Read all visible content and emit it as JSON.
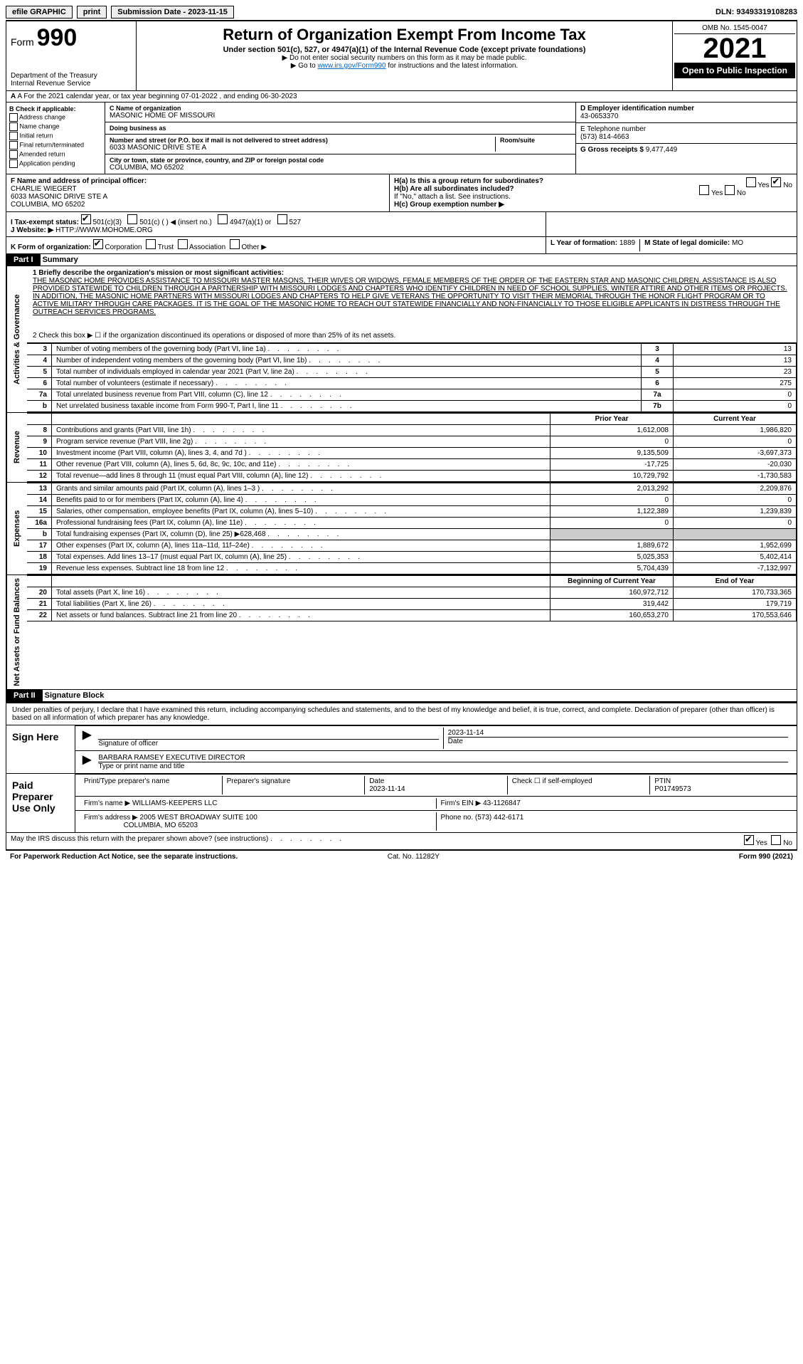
{
  "topbar": {
    "efile": "efile GRAPHIC",
    "print": "print",
    "sub_label": "Submission Date - 2023-11-15",
    "dln": "DLN: 93493319108283"
  },
  "header": {
    "form_label": "Form",
    "form_num": "990",
    "title": "Return of Organization Exempt From Income Tax",
    "subtitle": "Under section 501(c), 527, or 4947(a)(1) of the Internal Revenue Code (except private foundations)",
    "note1": "▶ Do not enter social security numbers on this form as it may be made public.",
    "note2_pre": "▶ Go to ",
    "note2_link": "www.irs.gov/Form990",
    "note2_post": " for instructions and the latest information.",
    "dept": "Department of the Treasury",
    "irs": "Internal Revenue Service",
    "omb": "OMB No. 1545-0047",
    "year": "2021",
    "open": "Open to Public Inspection"
  },
  "row_a": "A For the 2021 calendar year, or tax year beginning 07-01-2022   , and ending 06-30-2023",
  "col_b": {
    "header": "B Check if applicable:",
    "items": [
      "Address change",
      "Name change",
      "Initial return",
      "Final return/terminated",
      "Amended return",
      "Application pending"
    ]
  },
  "col_c": {
    "name_lbl": "C Name of organization",
    "name": "MASONIC HOME OF MISSOURI",
    "dba_lbl": "Doing business as",
    "dba": "",
    "street_lbl": "Number and street (or P.O. box if mail is not delivered to street address)",
    "room_lbl": "Room/suite",
    "street": "6033 MASONIC DRIVE STE A",
    "city_lbl": "City or town, state or province, country, and ZIP or foreign postal code",
    "city": "COLUMBIA, MO  65202"
  },
  "col_d": {
    "ein_lbl": "D Employer identification number",
    "ein": "43-0653370",
    "phone_lbl": "E Telephone number",
    "phone": "(573) 814-4663",
    "gross_lbl": "G Gross receipts $",
    "gross": "9,477,449"
  },
  "fh": {
    "f_lbl": "F  Name and address of principal officer:",
    "f_name": "CHARLIE WIEGERT",
    "f_addr1": "6033 MASONIC DRIVE STE A",
    "f_addr2": "COLUMBIA, MO  65202",
    "ha": "H(a)  Is this a group return for subordinates?",
    "hb": "H(b)  Are all subordinates included?",
    "hb_note": "If \"No,\" attach a list. See instructions.",
    "hc": "H(c)  Group exemption number ▶",
    "yes": "Yes",
    "no": "No"
  },
  "i": {
    "lbl": "I   Tax-exempt status:",
    "opt1": "501(c)(3)",
    "opt2": "501(c) (   ) ◀ (insert no.)",
    "opt3": "4947(a)(1) or",
    "opt4": "527"
  },
  "j": {
    "lbl": "J   Website: ▶",
    "val": "HTTP://WWW.MOHOME.ORG"
  },
  "k": {
    "lbl": "K Form of organization:",
    "opts": [
      "Corporation",
      "Trust",
      "Association",
      "Other ▶"
    ],
    "l_lbl": "L Year of formation:",
    "l_val": "1889",
    "m_lbl": "M State of legal domicile:",
    "m_val": "MO"
  },
  "part1": {
    "tag": "Part I",
    "title": "Summary",
    "line1_lbl": "1  Briefly describe the organization's mission or most significant activities:",
    "mission": "THE MASONIC HOME PROVIDES ASSISTANCE TO MISSOURI MASTER MASONS, THEIR WIVES OR WIDOWS, FEMALE MEMBERS OF THE ORDER OF THE EASTERN STAR AND MASONIC CHILDREN. ASSISTANCE IS ALSO PROVIDED STATEWIDE TO CHILDREN THROUGH A PARTNERSHIP WITH MISSOURI LODGES AND CHAPTERS WHO IDENTIFY CHILDREN IN NEED OF SCHOOL SUPPLIES, WINTER ATTIRE AND OTHER ITEMS OR PROJECTS. IN ADDITION, THE MASONIC HOME PARTNERS WITH MISSOURI LODGES AND CHAPTERS TO HELP GIVE VETERANS THE OPPORTUNITY TO VISIT THEIR MEMORIAL THROUGH THE HONOR FLIGHT PROGRAM OR TO ACTIVE MILITARY THROUGH CARE PACKAGES. IT IS THE GOAL OF THE MASONIC HOME TO REACH OUT STATEWIDE FINANCIALLY AND NON-FINANCIALLY TO THOSE ELIGIBLE APPLICANTS IN DISTRESS THROUGH THE OUTREACH SERVICES PROGRAMS.",
    "line2": "2   Check this box ▶ ☐ if the organization discontinued its operations or disposed of more than 25% of its net assets."
  },
  "vtabs": {
    "ag": "Activities & Governance",
    "rev": "Revenue",
    "exp": "Expenses",
    "net": "Net Assets or Fund Balances"
  },
  "gov_lines": [
    {
      "n": "3",
      "d": "Number of voting members of the governing body (Part VI, line 1a)",
      "c": "3",
      "v": "13"
    },
    {
      "n": "4",
      "d": "Number of independent voting members of the governing body (Part VI, line 1b)",
      "c": "4",
      "v": "13"
    },
    {
      "n": "5",
      "d": "Total number of individuals employed in calendar year 2021 (Part V, line 2a)",
      "c": "5",
      "v": "23"
    },
    {
      "n": "6",
      "d": "Total number of volunteers (estimate if necessary)",
      "c": "6",
      "v": "275"
    },
    {
      "n": "7a",
      "d": "Total unrelated business revenue from Part VIII, column (C), line 12",
      "c": "7a",
      "v": "0"
    },
    {
      "n": "b",
      "d": "Net unrelated business taxable income from Form 990-T, Part I, line 11",
      "c": "7b",
      "v": "0"
    }
  ],
  "year_hdr": {
    "prior": "Prior Year",
    "current": "Current Year"
  },
  "rev_lines": [
    {
      "n": "8",
      "d": "Contributions and grants (Part VIII, line 1h)",
      "p": "1,612,008",
      "c": "1,986,820"
    },
    {
      "n": "9",
      "d": "Program service revenue (Part VIII, line 2g)",
      "p": "0",
      "c": "0"
    },
    {
      "n": "10",
      "d": "Investment income (Part VIII, column (A), lines 3, 4, and 7d )",
      "p": "9,135,509",
      "c": "-3,697,373"
    },
    {
      "n": "11",
      "d": "Other revenue (Part VIII, column (A), lines 5, 6d, 8c, 9c, 10c, and 11e)",
      "p": "-17,725",
      "c": "-20,030"
    },
    {
      "n": "12",
      "d": "Total revenue—add lines 8 through 11 (must equal Part VIII, column (A), line 12)",
      "p": "10,729,792",
      "c": "-1,730,583"
    }
  ],
  "exp_lines": [
    {
      "n": "13",
      "d": "Grants and similar amounts paid (Part IX, column (A), lines 1–3 )",
      "p": "2,013,292",
      "c": "2,209,876"
    },
    {
      "n": "14",
      "d": "Benefits paid to or for members (Part IX, column (A), line 4)",
      "p": "0",
      "c": "0"
    },
    {
      "n": "15",
      "d": "Salaries, other compensation, employee benefits (Part IX, column (A), lines 5–10)",
      "p": "1,122,389",
      "c": "1,239,839"
    },
    {
      "n": "16a",
      "d": "Professional fundraising fees (Part IX, column (A), line 11e)",
      "p": "0",
      "c": "0"
    },
    {
      "n": "b",
      "d": "Total fundraising expenses (Part IX, column (D), line 25) ▶628,468",
      "p": "",
      "c": "",
      "grey": true
    },
    {
      "n": "17",
      "d": "Other expenses (Part IX, column (A), lines 11a–11d, 11f–24e)",
      "p": "1,889,672",
      "c": "1,952,699"
    },
    {
      "n": "18",
      "d": "Total expenses. Add lines 13–17 (must equal Part IX, column (A), line 25)",
      "p": "5,025,353",
      "c": "5,402,414"
    },
    {
      "n": "19",
      "d": "Revenue less expenses. Subtract line 18 from line 12",
      "p": "5,704,439",
      "c": "-7,132,997"
    }
  ],
  "net_hdr": {
    "b": "Beginning of Current Year",
    "e": "End of Year"
  },
  "net_lines": [
    {
      "n": "20",
      "d": "Total assets (Part X, line 16)",
      "p": "160,972,712",
      "c": "170,733,365"
    },
    {
      "n": "21",
      "d": "Total liabilities (Part X, line 26)",
      "p": "319,442",
      "c": "179,719"
    },
    {
      "n": "22",
      "d": "Net assets or fund balances. Subtract line 21 from line 20",
      "p": "160,653,270",
      "c": "170,553,646"
    }
  ],
  "part2": {
    "tag": "Part II",
    "title": "Signature Block",
    "declare": "Under penalties of perjury, I declare that I have examined this return, including accompanying schedules and statements, and to the best of my knowledge and belief, it is true, correct, and complete. Declaration of preparer (other than officer) is based on all information of which preparer has any knowledge.",
    "sign_here": "Sign Here",
    "sig_officer": "Signature of officer",
    "date": "Date",
    "sig_date": "2023-11-14",
    "officer_name": "BARBARA RAMSEY EXECUTIVE DIRECTOR",
    "type_name": "Type or print name and title",
    "paid": "Paid Preparer Use Only",
    "prep_name_lbl": "Print/Type preparer's name",
    "prep_sig_lbl": "Preparer's signature",
    "prep_date": "2023-11-14",
    "check_self": "Check ☐ if self-employed",
    "ptin_lbl": "PTIN",
    "ptin": "P01749573",
    "firm_name_lbl": "Firm's name    ▶",
    "firm_name": "WILLIAMS-KEEPERS LLC",
    "firm_ein_lbl": "Firm's EIN ▶",
    "firm_ein": "43-1126847",
    "firm_addr_lbl": "Firm's address ▶",
    "firm_addr1": "2005 WEST BROADWAY SUITE 100",
    "firm_addr2": "COLUMBIA, MO  65203",
    "firm_phone_lbl": "Phone no.",
    "firm_phone": "(573) 442-6171",
    "may_irs": "May the IRS discuss this return with the preparer shown above? (see instructions)"
  },
  "footer": {
    "left": "For Paperwork Reduction Act Notice, see the separate instructions.",
    "mid": "Cat. No. 11282Y",
    "right": "Form 990 (2021)"
  },
  "colors": {
    "link": "#0066cc",
    "black": "#000000",
    "grey": "#cccccc",
    "btn_bg": "#eeeeee"
  }
}
